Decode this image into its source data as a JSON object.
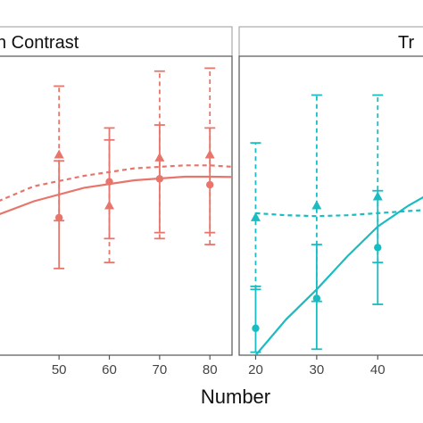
{
  "colors": {
    "left": "#e8756b",
    "right": "#19bcc1",
    "strip_bg": "#ffffff",
    "strip_border": "#9a9a9a",
    "panel_border": "#555555",
    "axis_text": "#444444"
  },
  "xlabel": "Number",
  "chart_data": [
    {
      "type": "scatter",
      "panel_title": "h Contrast",
      "xlim": [
        37.9,
        84.4
      ],
      "ylim": [
        0,
        1
      ],
      "ticks": [
        50,
        60,
        70,
        80
      ],
      "tick_labels": [
        "50",
        "60",
        "70",
        "80"
      ],
      "series": [
        {
          "marker": "circle",
          "line": "solid",
          "x": [
            50,
            60,
            70,
            80
          ],
          "y": [
            0.46,
            0.58,
            0.59,
            0.57
          ],
          "err_low": [
            0.29,
            0.39,
            0.41,
            0.41
          ],
          "err_high": [
            0.65,
            0.76,
            0.77,
            0.76
          ],
          "fit": [
            [
              37.9,
              0.47
            ],
            [
              45,
              0.515
            ],
            [
              55,
              0.56
            ],
            [
              65,
              0.585
            ],
            [
              75,
              0.597
            ],
            [
              80,
              0.597
            ],
            [
              84.4,
              0.596
            ]
          ]
        },
        {
          "marker": "triangle",
          "line": "dashed",
          "x": [
            50,
            60,
            70,
            80
          ],
          "y": [
            0.67,
            0.5,
            0.66,
            0.67
          ],
          "err_low": [
            0.45,
            0.31,
            0.39,
            0.37
          ],
          "err_high": [
            0.9,
            0.72,
            0.95,
            0.96
          ],
          "fit": [
            [
              37.9,
              0.515
            ],
            [
              45,
              0.565
            ],
            [
              55,
              0.6
            ],
            [
              65,
              0.625
            ],
            [
              75,
              0.635
            ],
            [
              80,
              0.635
            ],
            [
              84.4,
              0.63
            ]
          ]
        }
      ]
    },
    {
      "type": "scatter",
      "panel_title": "Tr",
      "xlim": [
        17.3,
        48
      ],
      "ylim": [
        0,
        1
      ],
      "ticks": [
        20,
        30,
        40
      ],
      "tick_labels": [
        "20",
        "30",
        "40"
      ],
      "series": [
        {
          "marker": "circle",
          "line": "solid",
          "x": [
            20,
            30,
            40
          ],
          "y": [
            0.09,
            0.19,
            0.36
          ],
          "err_low": [
            0.01,
            0.02,
            0.17
          ],
          "err_high": [
            0.23,
            0.37,
            0.55
          ],
          "fit": [
            [
              20,
              0.0
            ],
            [
              25,
              0.12
            ],
            [
              30,
              0.22
            ],
            [
              35,
              0.33
            ],
            [
              40,
              0.43
            ],
            [
              45,
              0.5
            ],
            [
              48,
              0.535
            ]
          ]
        },
        {
          "marker": "triangle",
          "line": "dashed",
          "x": [
            20,
            30,
            40
          ],
          "y": [
            0.46,
            0.5,
            0.53
          ],
          "err_low": [
            0.22,
            0.18,
            0.31
          ],
          "err_high": [
            0.71,
            0.87,
            0.87
          ],
          "fit": [
            [
              20,
              0.475
            ],
            [
              25,
              0.468
            ],
            [
              30,
              0.465
            ],
            [
              35,
              0.468
            ],
            [
              40,
              0.475
            ],
            [
              45,
              0.482
            ],
            [
              48,
              0.486
            ]
          ]
        }
      ]
    }
  ]
}
